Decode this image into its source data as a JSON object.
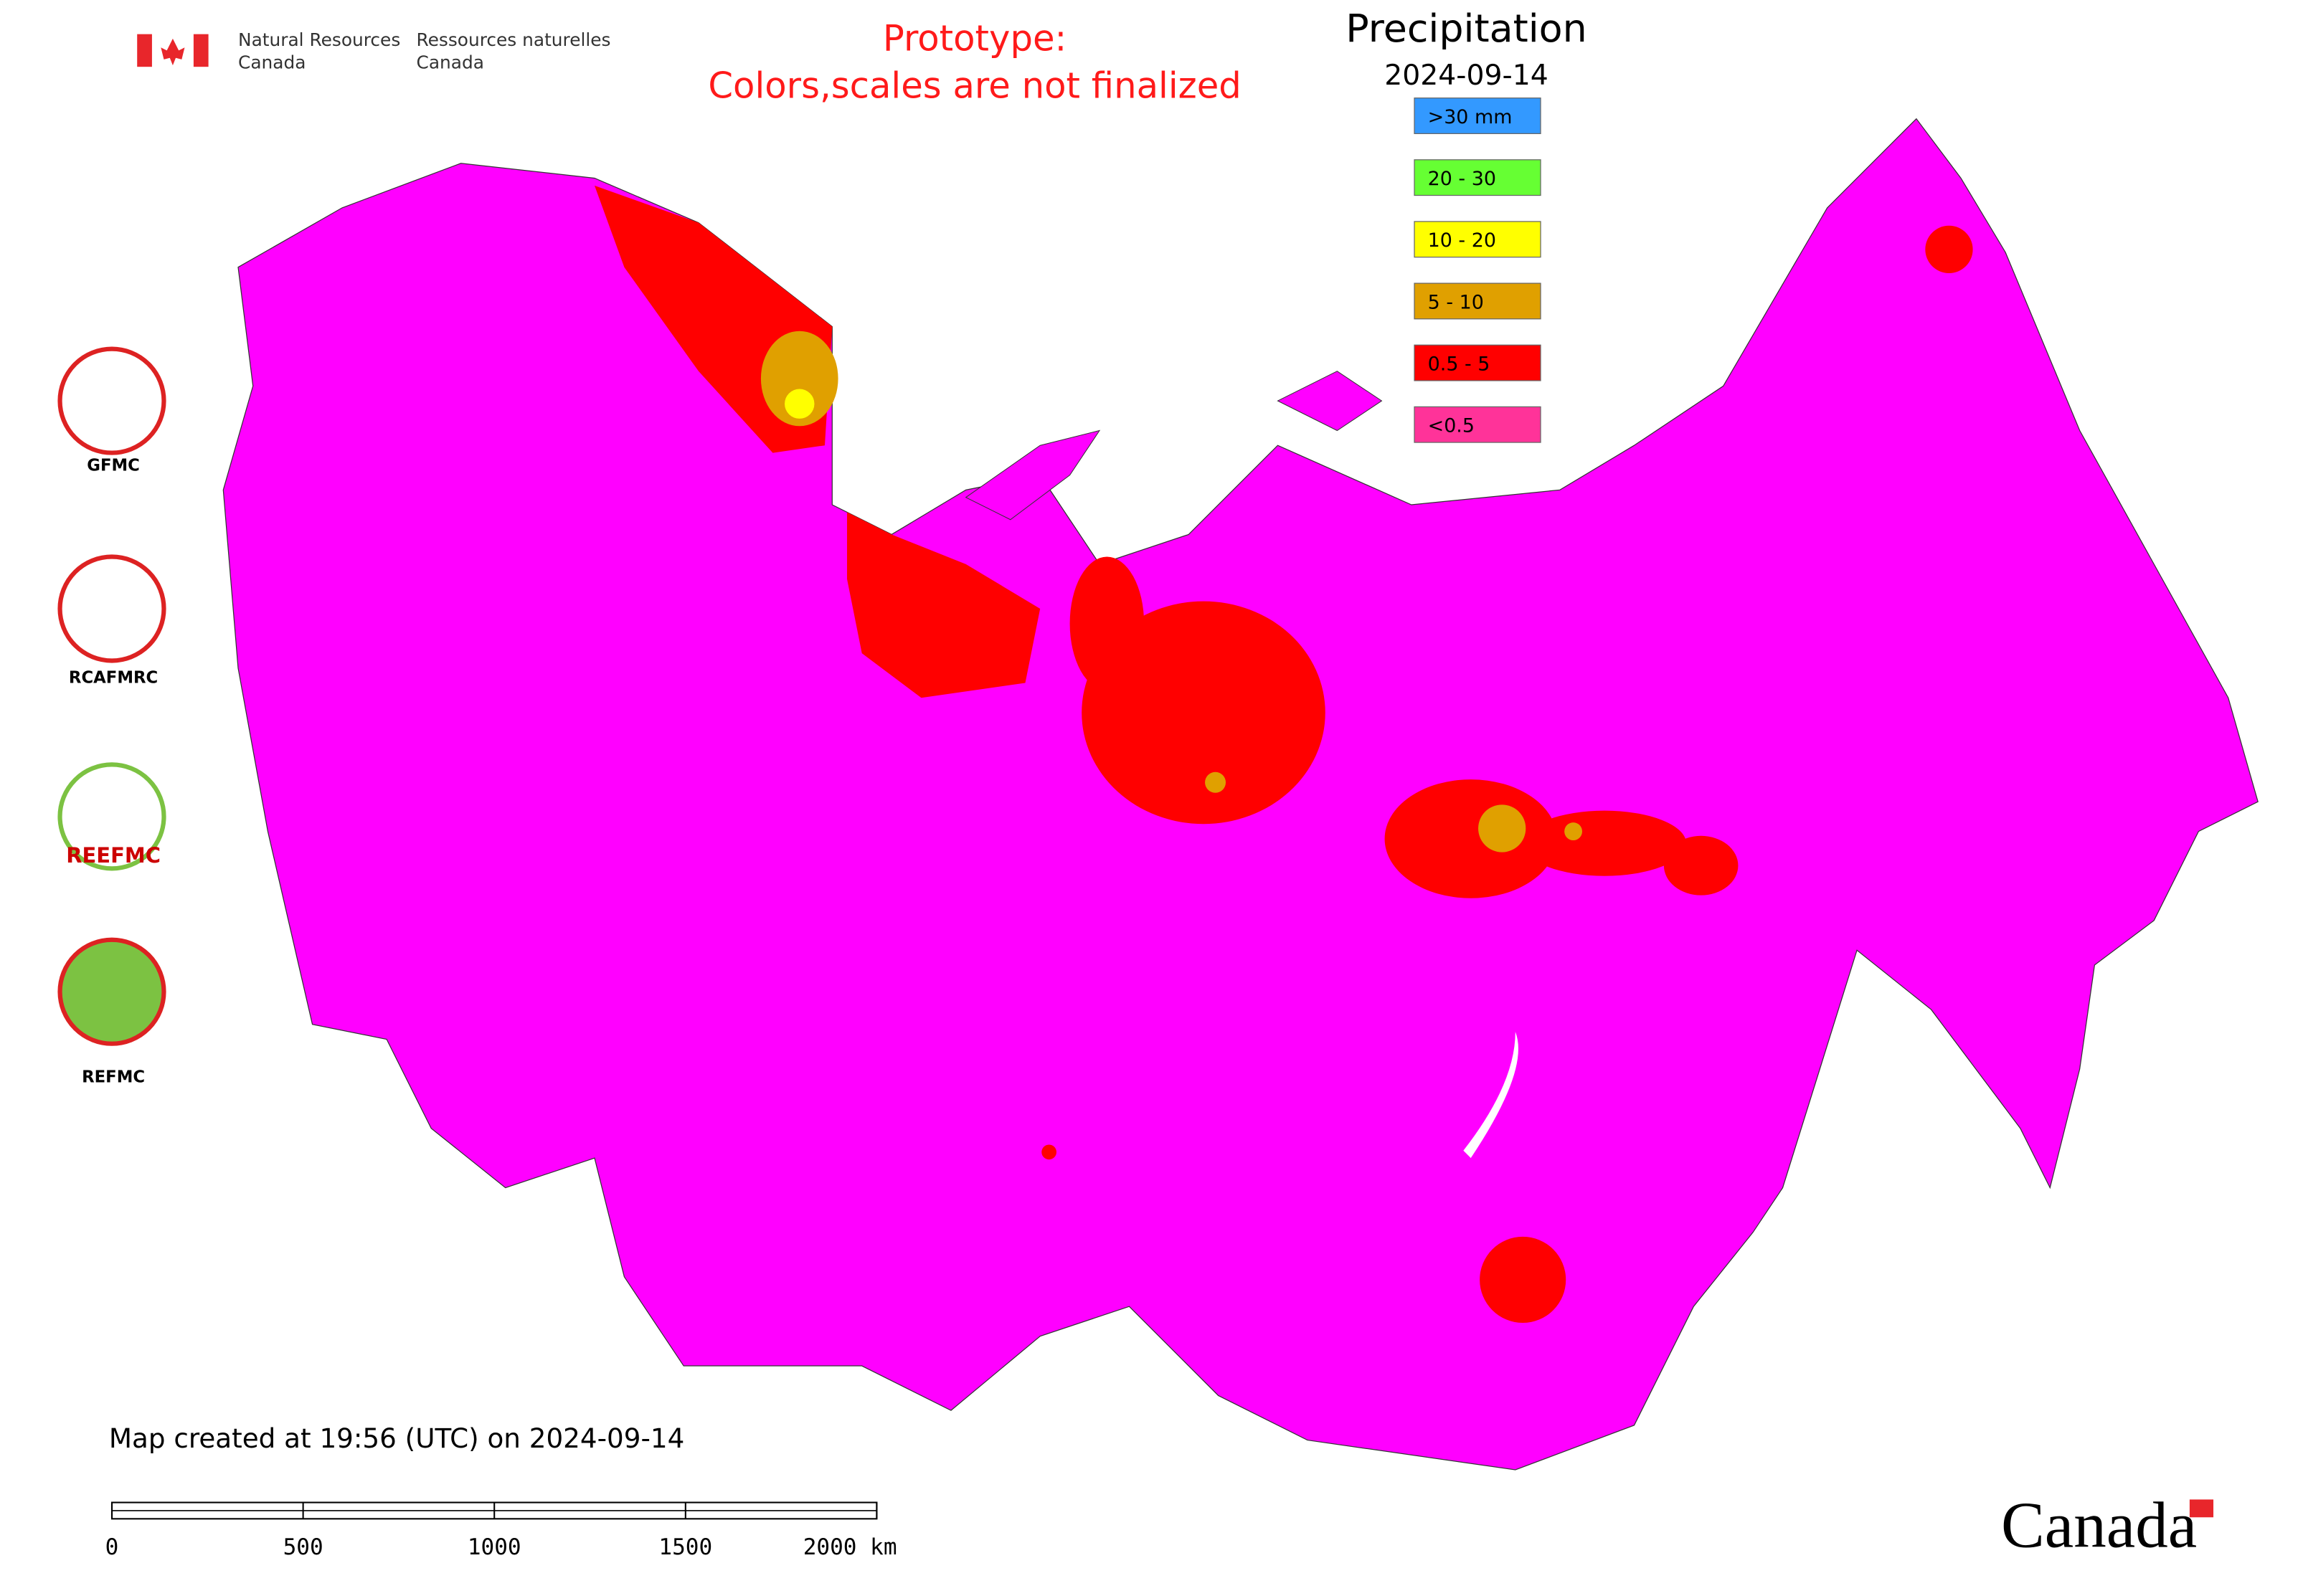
{
  "header": {
    "agency_en": [
      "Natural Resources",
      "Canada"
    ],
    "agency_fr": [
      "Ressources naturelles",
      "Canada"
    ]
  },
  "notice": [
    "Prototype:",
    "Colors,scales are not finalized"
  ],
  "legend": {
    "title": "Precipitation",
    "date": "2024-09-14",
    "items": [
      {
        "label": ">30 mm",
        "color": "#3399ff"
      },
      {
        "label": "20 - 30",
        "color": "#66ff33"
      },
      {
        "label": "10 - 20",
        "color": "#ffff00"
      },
      {
        "label": "5 - 10",
        "color": "#e0a000"
      },
      {
        "label": "0.5 - 5",
        "color": "#ff0000"
      },
      {
        "label": "<0.5",
        "color": "#ff3399"
      }
    ]
  },
  "logos": [
    "GFMC",
    "RCAFMRC",
    "REEFMC",
    "REFMC"
  ],
  "footer": {
    "created": "Map created at 19:56 (UTC) on 2024-09-14",
    "scale": {
      "ticks": [
        0,
        500,
        1000,
        1500,
        {
          "value": 2000,
          "label": "2000 km"
        }
      ]
    },
    "wordmark": "Canada"
  }
}
